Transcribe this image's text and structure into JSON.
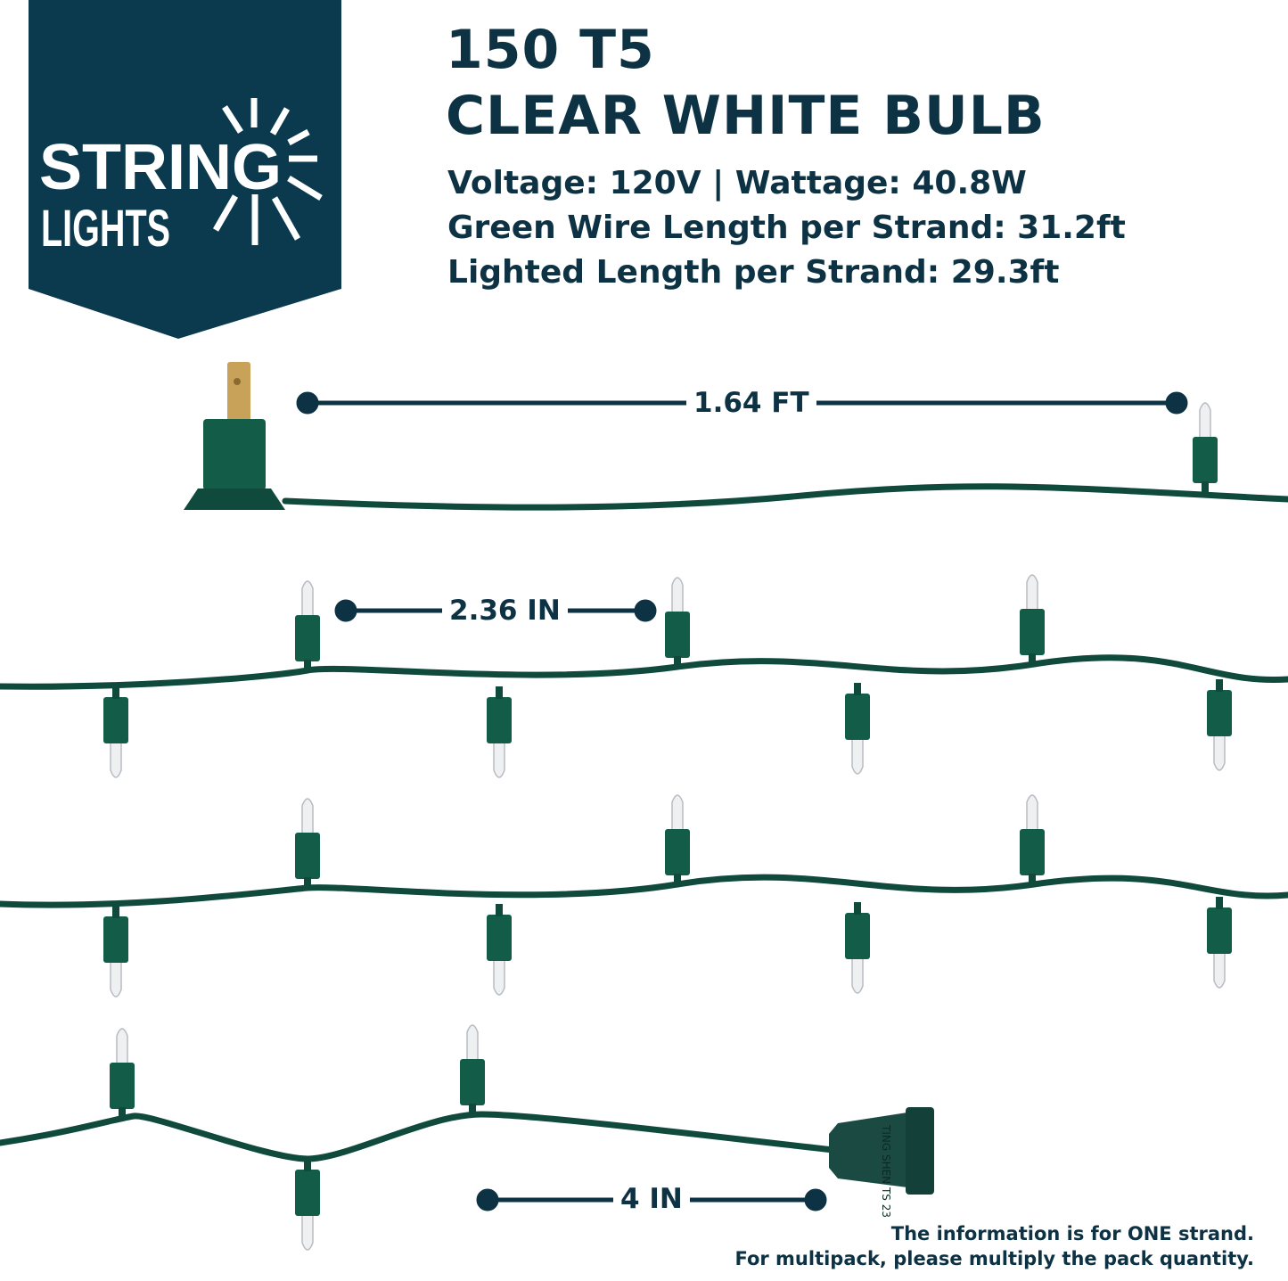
{
  "logo": {
    "line1": "STRING",
    "line2": "LIGHTS",
    "background": "#0b3a4f"
  },
  "header": {
    "title_line1": "150 T5",
    "title_line2": "CLEAR WHITE BULB",
    "specs": [
      "Voltage: 120V | Wattage: 40.8W",
      "Green Wire Length per Strand: 31.2ft",
      "Lighted Length per Strand: 29.3ft"
    ]
  },
  "dimensions": {
    "plug_to_first_bulb": "1.64 FT",
    "bulb_spacing": "2.36 IN",
    "last_bulb_to_end": "4 IN"
  },
  "socket_imprint": "TING SHEN TS 23",
  "footnote": {
    "line1": "The information is for ONE strand.",
    "line2": "For multipack, please multiply the pack quantity."
  },
  "colors": {
    "text": "#0d3244",
    "wire": "#0f4a3c",
    "socket": "#135c48",
    "plug_prong": "#c9a25a"
  }
}
